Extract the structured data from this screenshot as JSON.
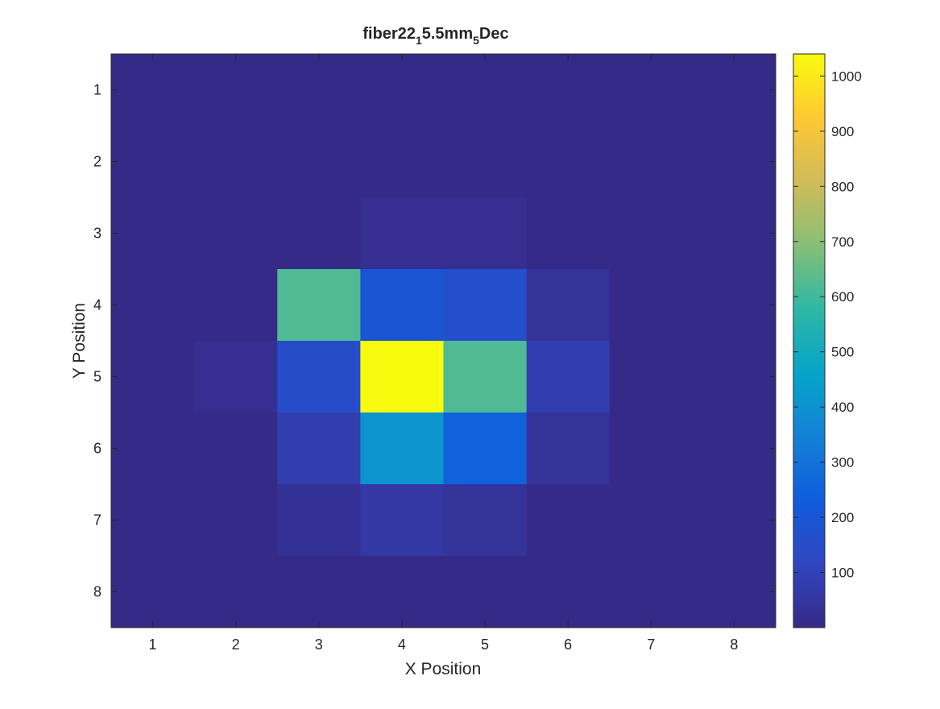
{
  "figure": {
    "background": "#ffffff"
  },
  "chart_data": {
    "type": "heatmap",
    "title": {
      "main": "fiber22",
      "sub1": "1",
      "mid": "5.5mm",
      "sub2": "5",
      "end": "Dec"
    },
    "xlabel": "X Position",
    "ylabel": "Y Position",
    "x": [
      1,
      2,
      3,
      4,
      5,
      6,
      7,
      8
    ],
    "y": [
      1,
      2,
      3,
      4,
      5,
      6,
      7,
      8
    ],
    "xlim": [
      0.5,
      8.5
    ],
    "ylim": [
      0.5,
      8.5
    ],
    "y_direction": "reverse",
    "grid": false,
    "values": [
      [
        0,
        0,
        0,
        0,
        0,
        0,
        0,
        0
      ],
      [
        0,
        0,
        0,
        0,
        0,
        0,
        0,
        0
      ],
      [
        0,
        0,
        0,
        20,
        20,
        0,
        0,
        0
      ],
      [
        0,
        0,
        620,
        190,
        160,
        40,
        0,
        0
      ],
      [
        0,
        20,
        150,
        1040,
        620,
        80,
        0,
        0
      ],
      [
        0,
        0,
        80,
        410,
        250,
        40,
        0,
        0
      ],
      [
        0,
        0,
        30,
        60,
        40,
        0,
        0,
        0
      ],
      [
        0,
        0,
        0,
        0,
        0,
        0,
        0,
        0
      ]
    ],
    "colorbar": {
      "range": [
        0,
        1040
      ],
      "ticks": [
        "100",
        "200",
        "300",
        "400",
        "500",
        "600",
        "700",
        "800",
        "900",
        "1000"
      ],
      "tick_values": [
        100,
        200,
        300,
        400,
        500,
        600,
        700,
        800,
        900,
        1000
      ],
      "colormap": "parula",
      "placement": "right"
    },
    "colormap_stops": [
      "#352a87",
      "#3145bf",
      "#0f5cdd",
      "#1481d6",
      "#06a4ca",
      "#2eb7a4",
      "#87bf77",
      "#d1bb59",
      "#fec832",
      "#f9fb0e"
    ],
    "axis_color": "#262626",
    "frame_color": "#262626"
  }
}
